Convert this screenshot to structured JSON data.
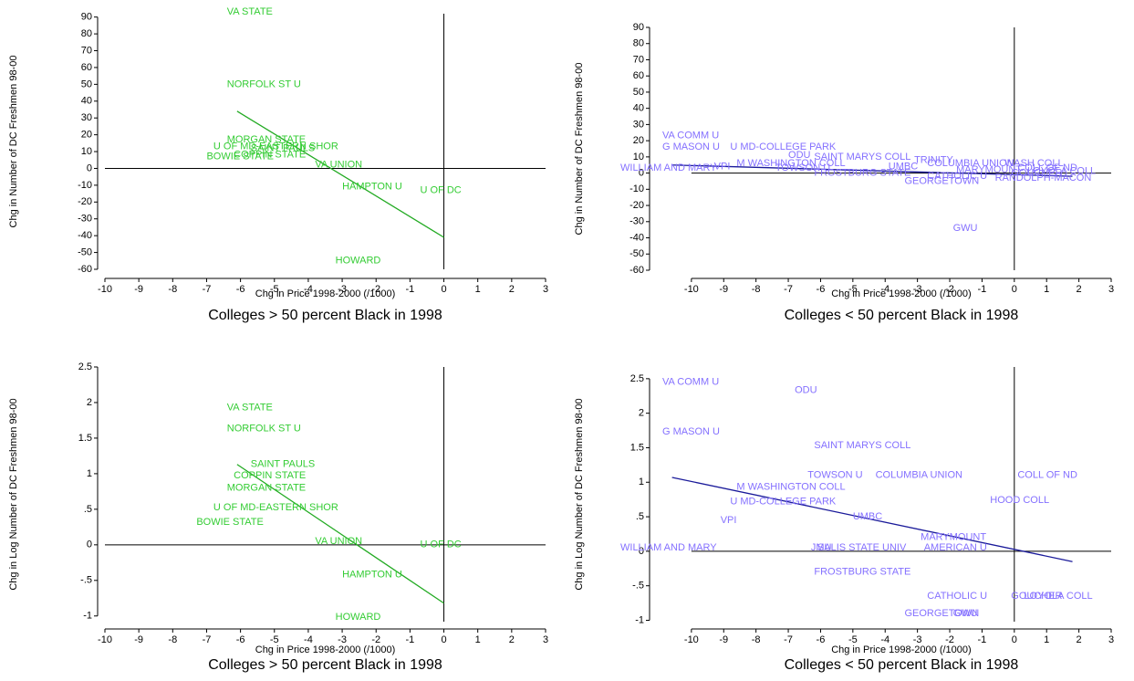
{
  "chart_data": [
    {
      "type": "scatter",
      "title": "Colleges > 50 percent Black in 1998",
      "xlabel": "Chg in Price 1998-2000 (/1000)",
      "ylabel": "Chg in Number of DC Freshmen 98-00",
      "labels": [
        "VA STATE",
        "NORFOLK ST U",
        "MORGAN STATE",
        "U OF MD-EASTERN SHOR",
        "SAINT PAULS",
        "COPPIN STATE",
        "BOWIE STATE",
        "VA UNION",
        "HAMPTON U",
        "U OF DC",
        "HOWARD"
      ],
      "x": [
        -6.4,
        -6.4,
        -6.4,
        -6.8,
        -5.7,
        -6.2,
        -7,
        -3.8,
        -3,
        -0.7,
        -3.2
      ],
      "y": [
        93,
        50,
        17,
        13,
        12,
        8,
        7,
        2,
        -11,
        -13,
        -55
      ],
      "fit": {
        "x": [
          -6.1,
          0
        ],
        "y": [
          34,
          -41
        ]
      },
      "color": "#33cc33",
      "fit_color": "#22aa22",
      "reference_lines": {
        "x": 0,
        "y": 0
      },
      "xlim": [
        -10,
        3
      ],
      "ylim": [
        -60,
        92
      ],
      "xticks": [
        -10,
        -9,
        -8,
        -7,
        -6,
        -5,
        -4,
        -3,
        -2,
        -1,
        0,
        1,
        2,
        3
      ],
      "yticks": [
        90,
        80,
        70,
        60,
        50,
        40,
        30,
        20,
        10,
        0,
        -10,
        -20,
        -30,
        -40,
        -50,
        -60
      ]
    },
    {
      "type": "scatter",
      "title": "Colleges < 50 percent Black in 1998",
      "xlabel": "Chg in Price 1998-2000 (/1000)",
      "ylabel": "Chg in Number of DC Freshmen 98-00",
      "labels": [
        "VA COMM U",
        "G MASON U",
        "U MD-COLLEGE PARK",
        "ODU",
        "SAINT MARYS COLL",
        "TRINITY",
        "M WASHINGTON COLL",
        "COLUMBIA UNION",
        "WASH COLL",
        "WILLIAM AND MARY",
        "VPI",
        "TOWSON U",
        "UMBC",
        "FROSTBURG STATE",
        "CATHOLIC U",
        "RANDOLPH-MACON",
        "GEORGETOWN",
        "GWU",
        "COLL OF ND",
        "MARYMOUNT",
        "LOYOLA COLL",
        "GOUCHER"
      ],
      "x": [
        -10.9,
        -10.9,
        -8.8,
        -7,
        -6.2,
        -3.1,
        -8.6,
        -2.7,
        -0.3,
        -12.2,
        -9.3,
        -7.4,
        -3.9,
        -6.2,
        -2.7,
        -0.6,
        -3.4,
        -1.9,
        0.1,
        -1.8,
        0.4,
        -0.1
      ],
      "y": [
        23,
        16,
        16,
        11,
        10,
        8,
        6,
        6,
        6,
        3,
        4,
        3,
        4,
        0,
        -2,
        -3,
        -5,
        -34,
        3,
        2,
        1,
        0
      ],
      "fit": {
        "x": [
          -10.6,
          1.8
        ],
        "y": [
          5,
          -2
        ]
      },
      "color": "#8470ff",
      "fit_color": "#1a1a9a",
      "reference_lines": {
        "x": 0,
        "y": 0
      },
      "xlim": [
        -12.2,
        3
      ],
      "ylim": [
        -60,
        90
      ],
      "xticks": [
        -10,
        -9,
        -8,
        -7,
        -6,
        -5,
        -4,
        -3,
        -2,
        -1,
        0,
        1,
        2,
        3
      ],
      "yticks": [
        90,
        80,
        70,
        60,
        50,
        40,
        30,
        20,
        10,
        0,
        -10,
        -20,
        -30,
        -40,
        -50,
        -60
      ]
    },
    {
      "type": "scatter",
      "title": "Colleges > 50 percent Black in 1998",
      "xlabel": "Chg in Price 1998-2000 (/1000)",
      "ylabel": "Chg in Log Number of DC Freshmen 98-00",
      "labels": [
        "VA STATE",
        "NORFOLK ST U",
        "SAINT PAULS",
        "COPPIN STATE",
        "MORGAN STATE",
        "U OF MD-EASTERN SHOR",
        "BOWIE STATE",
        "VA UNION",
        "U OF DC",
        "HAMPTON U",
        "HOWARD"
      ],
      "x": [
        -6.4,
        -6.4,
        -5.7,
        -6.2,
        -6.4,
        -6.8,
        -7.3,
        -3.8,
        -0.7,
        -3,
        -3.2
      ],
      "y": [
        1.93,
        1.63,
        1.13,
        0.97,
        0.8,
        0.52,
        0.32,
        0.05,
        0,
        -0.42,
        -1.02
      ],
      "fit": {
        "x": [
          -6.1,
          0
        ],
        "y": [
          1.13,
          -0.82
        ]
      },
      "color": "#33cc33",
      "fit_color": "#22aa22",
      "reference_lines": {
        "x": 0,
        "y": 0
      },
      "xlim": [
        -10,
        3
      ],
      "ylim": [
        -1.08,
        2.5
      ],
      "xticks": [
        -10,
        -9,
        -8,
        -7,
        -6,
        -5,
        -4,
        -3,
        -2,
        -1,
        0,
        1,
        2,
        3
      ],
      "yticks": [
        2.5,
        2,
        1.5,
        1,
        {
          "value": 0.5,
          "label": ".5"
        },
        0,
        {
          "value": -0.5,
          "label": "-.5"
        },
        -1
      ]
    },
    {
      "type": "scatter",
      "title": "Colleges < 50 percent Black in 1998",
      "xlabel": "Chg in Price 1998-2000 (/1000)",
      "ylabel": "Chg in Log Number of DC Freshmen 98-00",
      "labels": [
        "VA COMM U",
        "ODU",
        "G MASON U",
        "SAINT MARYS COLL",
        "TOWSON U",
        "COLUMBIA UNION",
        "COLL OF ND",
        "M WASHINGTON COLL",
        "HOOD COLL",
        "U MD-COLLEGE PARK",
        "UMBC",
        "VPI",
        "MARYMOUNT",
        "WILLIAM AND MARY",
        "JMU",
        "SALIS STATE UNIV",
        "AMERICAN U",
        "FROSTBURG STATE",
        "CATHOLIC U",
        "GOUCHER",
        "LOYOLA COLL",
        "GEORGETOWN",
        "GWU"
      ],
      "x": [
        -10.9,
        -6.8,
        -10.9,
        -6.2,
        -6.4,
        -4.3,
        0.1,
        -8.6,
        -0.75,
        -8.8,
        -5,
        -9.1,
        -2.9,
        -12.2,
        -6.3,
        -6.1,
        -2.8,
        -6.2,
        -2.7,
        -0.1,
        0.3,
        -3.4,
        -1.9
      ],
      "y": [
        2.45,
        2.33,
        1.73,
        1.53,
        1.1,
        1.1,
        1.1,
        0.93,
        0.74,
        0.72,
        0.5,
        0.45,
        0.2,
        0.05,
        0.05,
        0.05,
        0.05,
        -0.3,
        -0.65,
        -0.65,
        -0.65,
        -0.9,
        -0.9
      ],
      "fit": {
        "x": [
          -10.6,
          1.8
        ],
        "y": [
          1.07,
          -0.15
        ]
      },
      "color": "#8470ff",
      "fit_color": "#1a1a9a",
      "reference_lines": {
        "x": 0,
        "y": 0
      },
      "xlim": [
        -12.2,
        3
      ],
      "ylim": [
        -1.02,
        2.67
      ],
      "xticks": [
        -10,
        -9,
        -8,
        -7,
        -6,
        -5,
        -4,
        -3,
        -2,
        -1,
        0,
        1,
        2,
        3
      ],
      "yticks": [
        2.5,
        2,
        1.5,
        1,
        {
          "value": 0.5,
          "label": ".5"
        },
        0,
        {
          "value": -0.5,
          "label": "-.5"
        },
        -1
      ]
    }
  ]
}
